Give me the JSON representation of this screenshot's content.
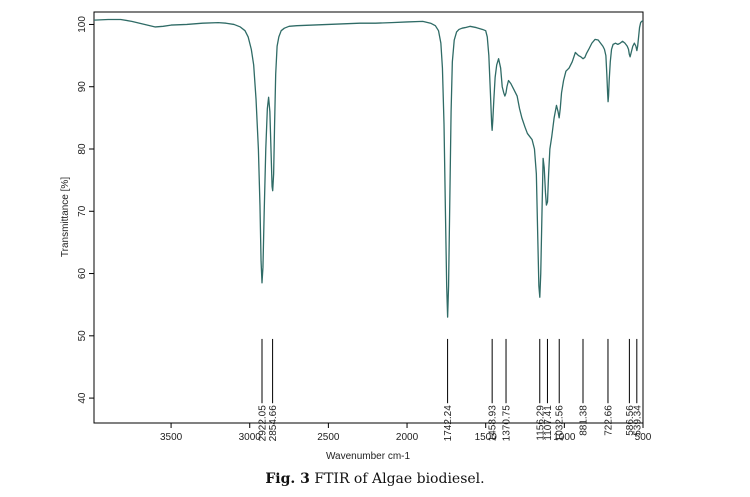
{
  "caption": {
    "prefix": "Fig. 3",
    "text": " FTIR of Algae biodiesel."
  },
  "chart_data": {
    "type": "line",
    "xlabel": "Wavenumber cm-1",
    "ylabel": "Transmittance [%]",
    "xlim": [
      3990,
      500
    ],
    "ylim": [
      36,
      102
    ],
    "x_ticks": [
      3500,
      3000,
      2500,
      2000,
      1500,
      1000,
      500
    ],
    "y_ticks": [
      40,
      50,
      60,
      70,
      80,
      90,
      100
    ],
    "line_color": "#2f6b66",
    "peak_line_bottom": 39.5,
    "peak_line_top": 49.5,
    "peaks": [
      {
        "x": 2922.05,
        "label": "2922.05"
      },
      {
        "x": 2854.66,
        "label": "2854.66"
      },
      {
        "x": 1742.24,
        "label": "1742.24"
      },
      {
        "x": 1458.93,
        "label": "1458.93"
      },
      {
        "x": 1370.75,
        "label": "1370.75"
      },
      {
        "x": 1156.29,
        "label": "1156.29"
      },
      {
        "x": 1107.41,
        "label": "1107.41"
      },
      {
        "x": 1032.56,
        "label": "1032.56"
      },
      {
        "x": 881.38,
        "label": "881.38"
      },
      {
        "x": 722.66,
        "label": "722.66"
      },
      {
        "x": 586.56,
        "label": "586.56"
      },
      {
        "x": 539.34,
        "label": "539.34"
      }
    ],
    "series": [
      {
        "x": [
          3990,
          3900,
          3820,
          3750,
          3700,
          3650,
          3600,
          3550,
          3500,
          3400,
          3300,
          3200,
          3150,
          3100,
          3060,
          3030,
          3010,
          2990,
          2975,
          2960,
          2945,
          2935,
          2928,
          2922,
          2916,
          2908,
          2898,
          2888,
          2880,
          2872,
          2865,
          2858,
          2854,
          2848,
          2842,
          2835,
          2826,
          2815,
          2800,
          2780,
          2750,
          2700,
          2600,
          2500,
          2400,
          2300,
          2200,
          2100,
          2000,
          1900,
          1850,
          1820,
          1800,
          1785,
          1775,
          1765,
          1756,
          1748,
          1742,
          1736,
          1728,
          1720,
          1712,
          1700,
          1685,
          1670,
          1650,
          1630,
          1600,
          1560,
          1520,
          1500,
          1490,
          1480,
          1470,
          1462,
          1459,
          1455,
          1448,
          1440,
          1430,
          1418,
          1405,
          1395,
          1385,
          1378,
          1371,
          1365,
          1355,
          1340,
          1320,
          1300,
          1285,
          1270,
          1250,
          1235,
          1220,
          1205,
          1190,
          1178,
          1170,
          1162,
          1156,
          1150,
          1142,
          1135,
          1128,
          1120,
          1114,
          1107,
          1100,
          1092,
          1080,
          1065,
          1050,
          1040,
          1033,
          1026,
          1018,
          1005,
          990,
          970,
          950,
          930,
          910,
          895,
          881,
          870,
          860,
          845,
          825,
          805,
          785,
          770,
          755,
          745,
          736,
          730,
          725,
          722,
          719,
          715,
          708,
          700,
          690,
          675,
          660,
          645,
          630,
          615,
          600,
          592,
          587,
          582,
          575,
          565,
          555,
          545,
          539,
          534,
          528,
          522,
          515,
          508,
          500
        ],
        "y": [
          100.7,
          100.8,
          100.8,
          100.5,
          100.2,
          99.9,
          99.6,
          99.7,
          99.9,
          100.0,
          100.2,
          100.3,
          100.2,
          100.0,
          99.6,
          99.0,
          98.0,
          96.0,
          93.5,
          88.0,
          80.0,
          71.0,
          62.0,
          58.5,
          61.0,
          70.0,
          80.0,
          86.5,
          88.3,
          86.0,
          80.0,
          74.0,
          73.3,
          76.0,
          84.0,
          92.0,
          96.5,
          98.0,
          99.0,
          99.4,
          99.7,
          99.8,
          99.9,
          100.0,
          100.1,
          100.2,
          100.2,
          100.3,
          100.4,
          100.5,
          100.2,
          99.8,
          99.0,
          97.0,
          93.0,
          84.0,
          70.0,
          58.0,
          53.0,
          58.0,
          72.0,
          86.0,
          94.0,
          97.5,
          98.8,
          99.2,
          99.4,
          99.5,
          99.7,
          99.5,
          99.2,
          99.0,
          98.0,
          95.0,
          89.0,
          84.0,
          83.0,
          84.5,
          88.0,
          91.5,
          93.5,
          94.5,
          93.0,
          90.0,
          89.0,
          88.5,
          89.0,
          90.0,
          91.0,
          90.5,
          89.5,
          88.5,
          86.5,
          85.0,
          83.5,
          82.5,
          82.0,
          81.5,
          80.0,
          76.0,
          67.0,
          58.0,
          56.2,
          60.0,
          70.0,
          78.5,
          77.0,
          73.0,
          71.0,
          71.5,
          76.0,
          80.0,
          82.0,
          85.0,
          87.0,
          86.0,
          85.0,
          86.5,
          89.0,
          91.0,
          92.5,
          93.0,
          94.0,
          95.5,
          95.0,
          94.8,
          94.5,
          94.7,
          95.3,
          96.0,
          97.0,
          97.6,
          97.5,
          97.0,
          96.5,
          96.0,
          95.0,
          92.0,
          89.0,
          87.6,
          88.5,
          91.0,
          94.0,
          96.0,
          96.8,
          97.0,
          96.8,
          97.0,
          97.3,
          97.0,
          96.5,
          96.0,
          95.2,
          94.8,
          95.5,
          96.5,
          97.0,
          96.5,
          95.8,
          96.5,
          98.0,
          99.5,
          100.3,
          100.5,
          100.6
        ]
      }
    ]
  }
}
